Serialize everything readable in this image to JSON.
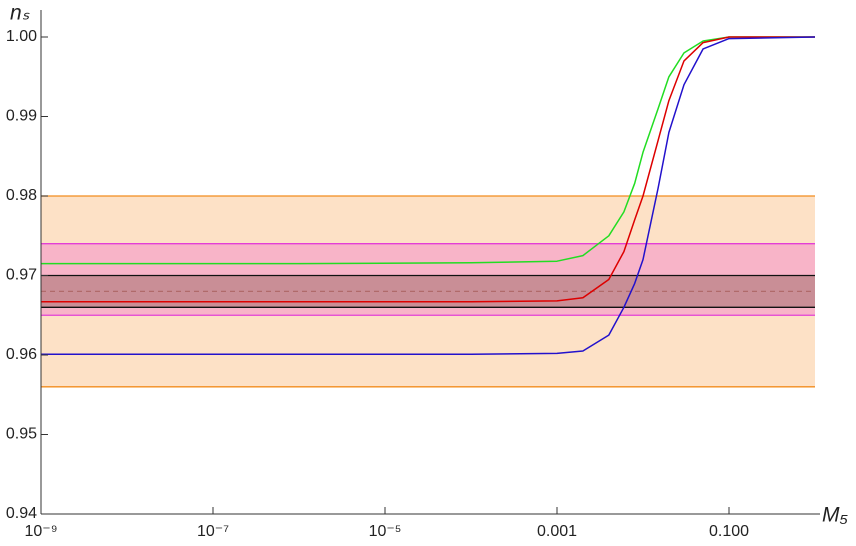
{
  "chart_data": {
    "type": "line",
    "x_label": "M₅",
    "y_label": "nₛ",
    "log_x": true,
    "xlim": [
      1e-09,
      1
    ],
    "ylim": [
      0.94,
      1.0
    ],
    "xticks": [
      {
        "value": 1e-09,
        "label": "10⁻⁹"
      },
      {
        "value": 1e-07,
        "label": "10⁻⁷"
      },
      {
        "value": 1e-05,
        "label": "10⁻⁵"
      },
      0.001,
      {
        "value": 0.1,
        "label": "0.100"
      }
    ],
    "yticks": [
      0.94,
      0.95,
      0.96,
      0.97,
      0.98,
      0.99,
      {
        "value": 1.0,
        "label": "1.00"
      }
    ],
    "bands": [
      {
        "range": [
          0.956,
          0.98
        ],
        "color": "#fde1c6",
        "edge": "#f28c1e"
      },
      {
        "range": [
          0.965,
          0.974
        ],
        "color": "#f8b4c8",
        "edge": "#e23fd6"
      },
      {
        "range": [
          0.966,
          0.97
        ],
        "color": "#c98e96",
        "edge": "#111111"
      }
    ],
    "dashed_line": {
      "value": 0.968,
      "color": "#b06a6a"
    },
    "x": [
      1e-09,
      1e-06,
      0.0001,
      0.001,
      0.002,
      0.004,
      0.006,
      0.008,
      0.01,
      0.015,
      0.02,
      0.03,
      0.05,
      0.1,
      1
    ],
    "series": [
      {
        "name": "green",
        "color": "#22dd22",
        "values": [
          0.9715,
          0.9715,
          0.9716,
          0.9718,
          0.9725,
          0.975,
          0.978,
          0.9816,
          0.9855,
          0.991,
          0.995,
          0.998,
          0.9995,
          1.0,
          1.0
        ]
      },
      {
        "name": "red",
        "color": "#dd0000",
        "values": [
          0.9667,
          0.9667,
          0.9667,
          0.9668,
          0.9672,
          0.9695,
          0.973,
          0.977,
          0.98,
          0.987,
          0.992,
          0.997,
          0.9993,
          1.0,
          1.0
        ]
      },
      {
        "name": "blue",
        "color": "#2211cc",
        "values": [
          0.9601,
          0.9601,
          0.9601,
          0.9602,
          0.9605,
          0.9625,
          0.966,
          0.969,
          0.972,
          0.981,
          0.988,
          0.994,
          0.9985,
          0.9998,
          1.0
        ]
      }
    ]
  }
}
